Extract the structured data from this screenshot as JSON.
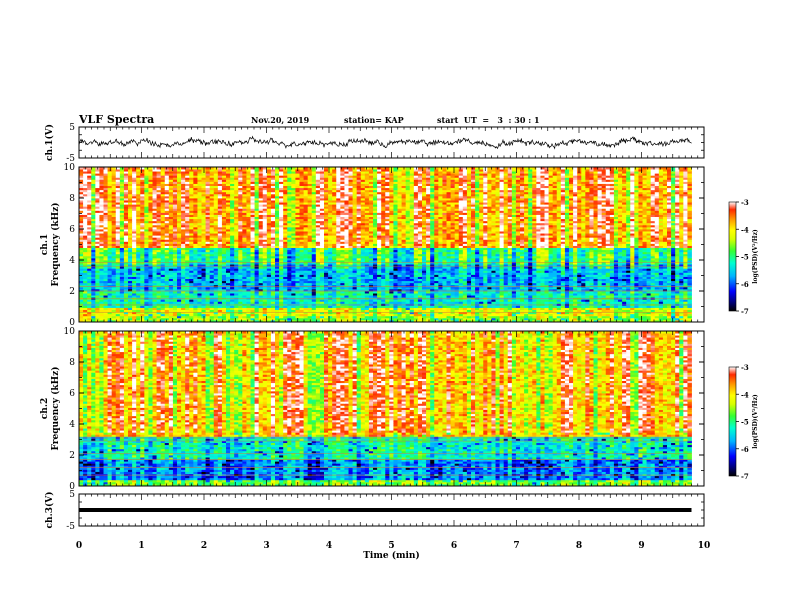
{
  "header": {
    "title": "VLF Spectra",
    "date": "Nov.20, 2019",
    "station": "station= KAP",
    "start": "start  UT  =   3  : 30 : 1"
  },
  "colors": {
    "colormap": [
      "#00007a",
      "#0000ff",
      "#00b4ff",
      "#00ffd0",
      "#33ff33",
      "#d8ff00",
      "#ffff00",
      "#ff9a00",
      "#ff2a00",
      "#ffffff"
    ]
  },
  "chart_data": [
    {
      "type": "line",
      "panel": "ch1-waveform",
      "ylabel": "ch.1(V)",
      "ylim": [
        -5,
        5
      ],
      "yticks": [
        "5",
        "-5"
      ],
      "xlim": [
        0,
        10
      ],
      "description_values": {
        "mean": 0,
        "amplitude_range": [
          -1.5,
          1.5
        ]
      }
    },
    {
      "type": "heatmap",
      "panel": "ch1-spectrogram",
      "ylabel": "ch.1\nFrequency (kHz)",
      "ylim": [
        0,
        10
      ],
      "yticks": [
        "0",
        "2",
        "4",
        "6",
        "8",
        "10"
      ],
      "xlim": [
        0,
        9.8
      ],
      "colorbar": {
        "label": "log(PSD)(V²/Hz)",
        "range": [
          -7,
          -3
        ],
        "ticks": [
          "-3",
          "-4",
          "-5",
          "-6",
          "-7"
        ]
      },
      "bands": [
        {
          "freq_khz": [
            0,
            0.4
          ],
          "log_psd": -4.6
        },
        {
          "freq_khz": [
            0.4,
            1.0
          ],
          "log_psd": -4.3
        },
        {
          "freq_khz": [
            1.0,
            2.0
          ],
          "log_psd": -5.3
        },
        {
          "freq_khz": [
            2.0,
            3.8
          ],
          "log_psd": -5.7
        },
        {
          "freq_khz": [
            3.8,
            4.8
          ],
          "log_psd": -5.2
        },
        {
          "freq_khz": [
            4.8,
            10.0
          ],
          "log_psd": -3.8
        }
      ]
    },
    {
      "type": "heatmap",
      "panel": "ch2-spectrogram",
      "ylabel": "ch.2\nFrequency (kHz)",
      "ylim": [
        0,
        10
      ],
      "yticks": [
        "0",
        "2",
        "4",
        "6",
        "8",
        "10"
      ],
      "xlim": [
        0,
        9.8
      ],
      "colorbar": {
        "label": "log(PSD)(V²/Hz)",
        "range": [
          -7,
          -3
        ],
        "ticks": [
          "-3",
          "-4",
          "-5",
          "-6",
          "-7"
        ]
      },
      "bands": [
        {
          "freq_khz": [
            0,
            0.4
          ],
          "log_psd": -4.7
        },
        {
          "freq_khz": [
            0.4,
            1.8
          ],
          "log_psd": -5.9
        },
        {
          "freq_khz": [
            1.8,
            3.2
          ],
          "log_psd": -5.3
        },
        {
          "freq_khz": [
            3.2,
            10.0
          ],
          "log_psd": -3.9
        }
      ]
    },
    {
      "type": "line",
      "panel": "ch3-waveform",
      "ylabel": "ch.3(V)",
      "ylim": [
        -5,
        5
      ],
      "yticks": [
        "5",
        "-5"
      ],
      "xlim": [
        0,
        10
      ],
      "constant_value": 0
    }
  ],
  "xaxis": {
    "label": "Time  (min)",
    "ticks": [
      "0",
      "1",
      "2",
      "3",
      "4",
      "5",
      "6",
      "7",
      "8",
      "9",
      "10"
    ]
  }
}
